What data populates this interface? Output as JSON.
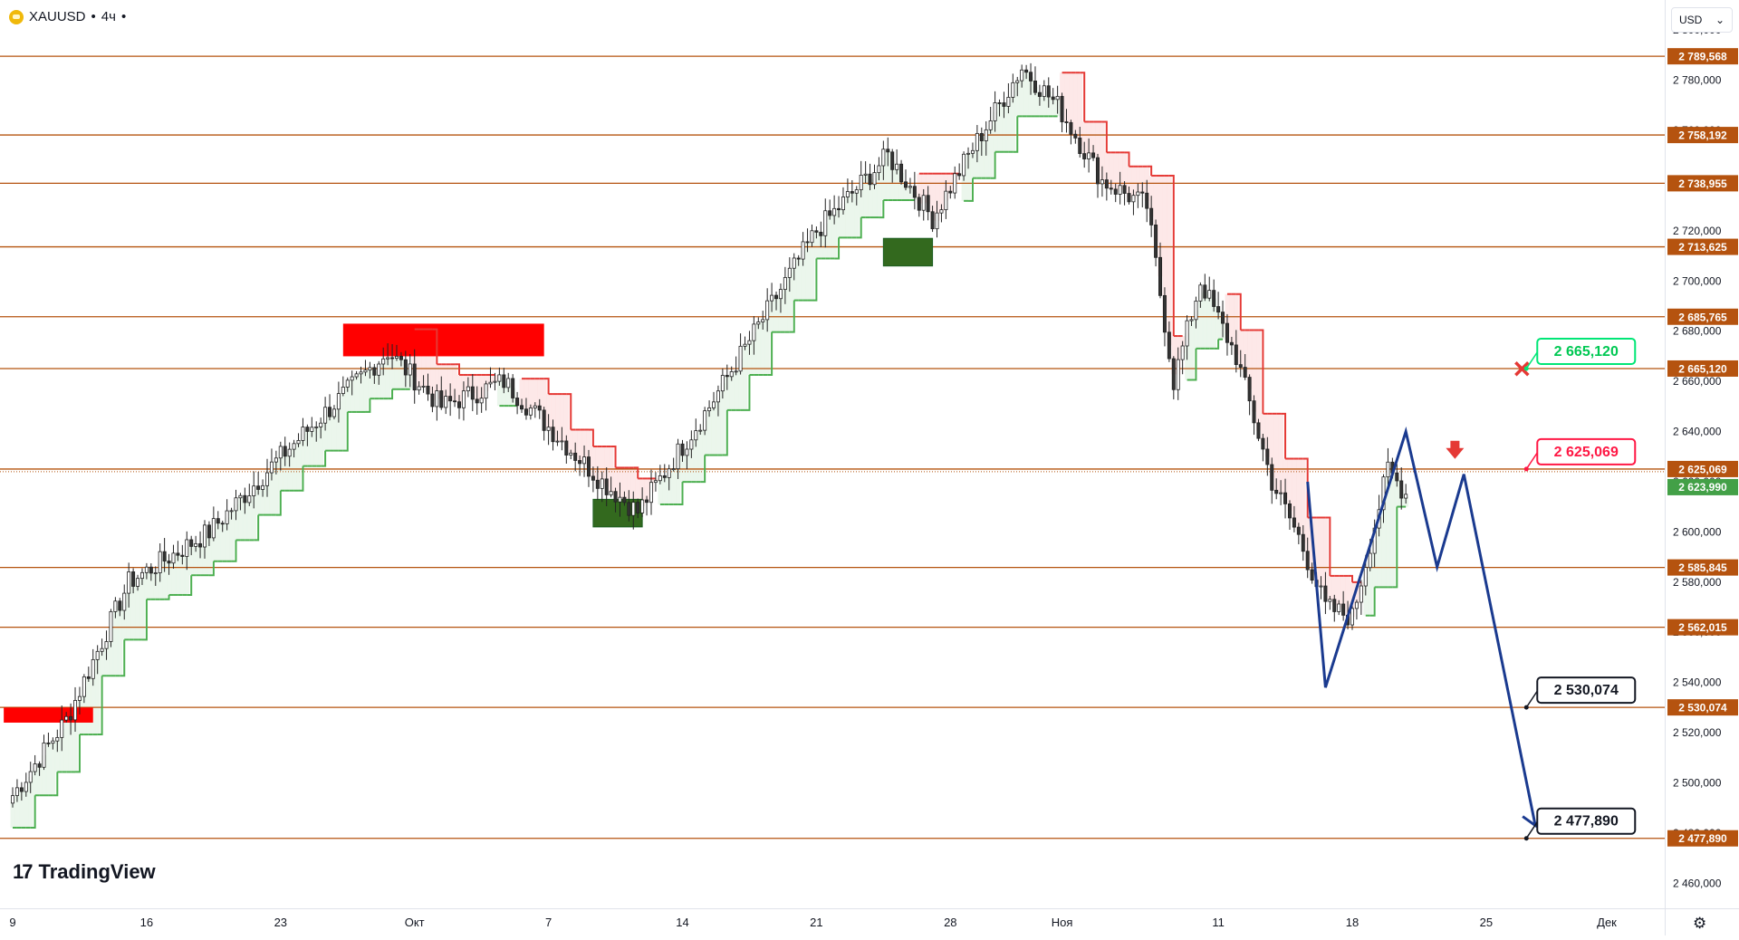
{
  "header": {
    "symbol": "XAUUSD",
    "separator1": "•",
    "interval": "4ч",
    "separator2": "•"
  },
  "currency": {
    "label": "USD",
    "chevron": "⌄"
  },
  "branding": {
    "logo_mark": "17",
    "logo_text": "TradingView"
  },
  "settings": {
    "icon": "gear-icon"
  },
  "chart_data": {
    "type": "candlestick",
    "instrument": "XAUUSD",
    "timeframe": "4ч",
    "ylim": [
      2450,
      2812
    ],
    "price_ticks": [
      "2 460,000",
      "2 480,000",
      "2 500,000",
      "2 520,000",
      "2 540,000",
      "2 560,000",
      "2 580,000",
      "2 600,000",
      "2 620,000",
      "2 640,000",
      "2 660,000",
      "2 680,000",
      "2 700,000",
      "2 720,000",
      "2 740,000",
      "2 760,000",
      "2 780,000",
      "2 800,000"
    ],
    "time_labels": [
      {
        "label": "9",
        "index": 0
      },
      {
        "label": "16",
        "index": 30
      },
      {
        "label": "23",
        "index": 60
      },
      {
        "label": "Окт",
        "index": 90
      },
      {
        "label": "7",
        "index": 120
      },
      {
        "label": "14",
        "index": 150
      },
      {
        "label": "21",
        "index": 180
      },
      {
        "label": "28",
        "index": 210
      },
      {
        "label": "Ноя",
        "index": 235
      },
      {
        "label": "11",
        "index": 270
      },
      {
        "label": "18",
        "index": 300
      },
      {
        "label": "25",
        "index": 330
      },
      {
        "label": "Дек",
        "index": 357
      }
    ],
    "levels": [
      {
        "price": 2789.568,
        "label": "2 789,568"
      },
      {
        "price": 2758.192,
        "label": "2 758,192"
      },
      {
        "price": 2738.955,
        "label": "2 738,955"
      },
      {
        "price": 2713.625,
        "label": "2 713,625"
      },
      {
        "price": 2685.765,
        "label": "2 685,765"
      },
      {
        "price": 2665.12,
        "label": "2 665,120"
      },
      {
        "price": 2625.069,
        "label": "2 625,069"
      },
      {
        "price": 2585.845,
        "label": "2 585,845"
      },
      {
        "price": 2562.015,
        "label": "2 562,015"
      },
      {
        "price": 2530.074,
        "label": "2 530,074"
      },
      {
        "price": 2477.89,
        "label": "2 477,890"
      }
    ],
    "current_price": {
      "price": 2623.99,
      "label": "2 623,990"
    },
    "callouts": [
      {
        "text": "2 665,120",
        "price": 2665.12,
        "style": "target-up"
      },
      {
        "text": "2 625,069",
        "price": 2625.069,
        "style": "entry"
      },
      {
        "text": "2 530,074",
        "price": 2530.074,
        "style": "target"
      },
      {
        "text": "2 477,890",
        "price": 2477.89,
        "style": "target"
      }
    ],
    "key_points": [
      {
        "index": 0,
        "price": 2495
      },
      {
        "index": 12,
        "price": 2525
      },
      {
        "index": 26,
        "price": 2580
      },
      {
        "index": 44,
        "price": 2600
      },
      {
        "index": 60,
        "price": 2630
      },
      {
        "index": 84,
        "price": 2672
      },
      {
        "index": 96,
        "price": 2650
      },
      {
        "index": 110,
        "price": 2660
      },
      {
        "index": 132,
        "price": 2620
      },
      {
        "index": 140,
        "price": 2608
      },
      {
        "index": 156,
        "price": 2650
      },
      {
        "index": 180,
        "price": 2720
      },
      {
        "index": 196,
        "price": 2750
      },
      {
        "index": 206,
        "price": 2725
      },
      {
        "index": 214,
        "price": 2750
      },
      {
        "index": 226,
        "price": 2785
      },
      {
        "index": 234,
        "price": 2770
      },
      {
        "index": 244,
        "price": 2740
      },
      {
        "index": 254,
        "price": 2730
      },
      {
        "index": 260,
        "price": 2660
      },
      {
        "index": 266,
        "price": 2700
      },
      {
        "index": 274,
        "price": 2670
      },
      {
        "index": 282,
        "price": 2620
      },
      {
        "index": 288,
        "price": 2598
      },
      {
        "index": 294,
        "price": 2570
      },
      {
        "index": 300,
        "price": 2566
      },
      {
        "index": 308,
        "price": 2625
      },
      {
        "index": 312,
        "price": 2615
      }
    ],
    "projection": [
      {
        "index": 290,
        "price": 2620
      },
      {
        "index": 294,
        "price": 2538
      },
      {
        "index": 312,
        "price": 2640
      },
      {
        "index": 319,
        "price": 2586
      },
      {
        "index": 325,
        "price": 2623
      },
      {
        "index": 341,
        "price": 2483
      },
      {
        "index": 344,
        "price": 2480
      }
    ],
    "supply_zones": [
      {
        "i0": -2,
        "i1": 18,
        "p0": 2530,
        "p1": 2524
      },
      {
        "i0": 74,
        "i1": 119,
        "p0": 2683,
        "p1": 2670
      }
    ],
    "demand_zones": [
      {
        "i0": 130,
        "i1": 141,
        "p0": 2613,
        "p1": 2602
      },
      {
        "i0": 195,
        "i1": 206,
        "p0": 2717,
        "p1": 2706
      }
    ],
    "annotations": [
      {
        "type": "cross",
        "index": 338,
        "price": 2665
      },
      {
        "type": "arrow-down",
        "index": 323,
        "price": 2632
      }
    ]
  }
}
